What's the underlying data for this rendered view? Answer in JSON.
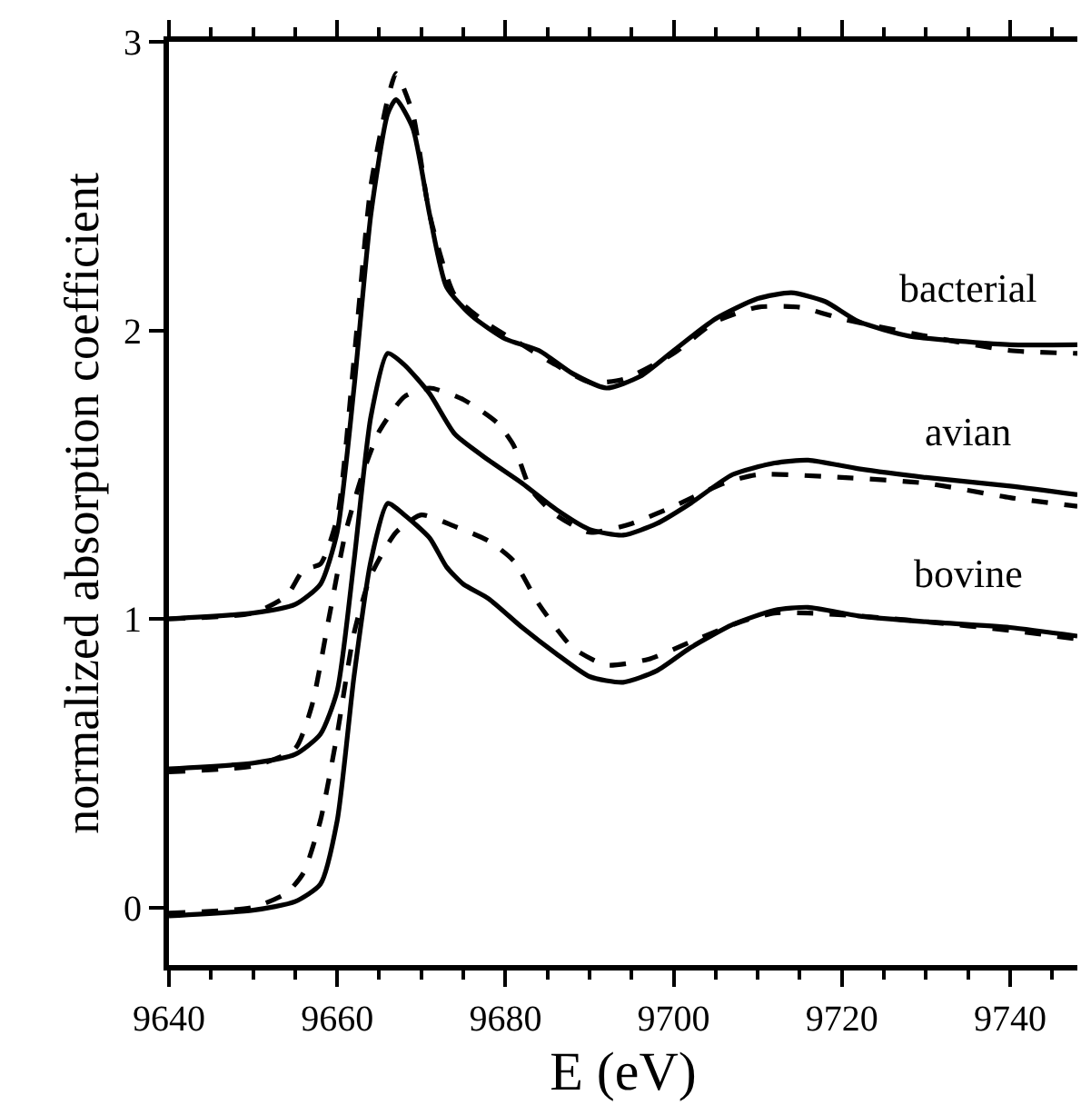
{
  "chart_data": {
    "type": "line",
    "xlabel": "E (eV)",
    "ylabel": "normalized absorption coefficient",
    "xlim": [
      9640,
      9748
    ],
    "xticks": [
      9640,
      9660,
      9680,
      9700,
      9720,
      9740
    ],
    "ylim": [
      -0.2,
      3
    ],
    "yticks": [
      0,
      1,
      2,
      3
    ],
    "marker": "none",
    "series": [
      {
        "color": "#000000",
        "line_style": "solid",
        "x": [
          9640,
          9650,
          9655,
          9658,
          9660,
          9662,
          9664,
          9666,
          9667,
          9669,
          9671,
          9673,
          9676,
          9680,
          9684,
          9688,
          9692,
          9696,
          9700,
          9705,
          9710,
          9714,
          9718,
          9722,
          9728,
          9735,
          9740,
          9748
        ],
        "values": [
          1.0,
          1.02,
          1.05,
          1.12,
          1.3,
          1.8,
          2.4,
          2.75,
          2.8,
          2.7,
          2.4,
          2.15,
          2.05,
          1.97,
          1.93,
          1.85,
          1.8,
          1.84,
          1.93,
          2.04,
          2.11,
          2.13,
          2.1,
          2.03,
          1.98,
          1.96,
          1.95,
          1.95
        ]
      },
      {
        "color": "#000000",
        "line_style": "dashed",
        "x": [
          9640,
          9650,
          9654,
          9656,
          9658,
          9660,
          9662,
          9664,
          9666,
          9667,
          9669,
          9671,
          9674,
          9678,
          9682,
          9686,
          9690,
          9694,
          9700,
          9705,
          9710,
          9715,
          9720,
          9730,
          9740,
          9748
        ],
        "values": [
          1.0,
          1.02,
          1.08,
          1.17,
          1.19,
          1.35,
          1.9,
          2.5,
          2.8,
          2.89,
          2.75,
          2.4,
          2.12,
          2.02,
          1.95,
          1.88,
          1.82,
          1.83,
          1.92,
          2.03,
          2.08,
          2.08,
          2.04,
          1.98,
          1.93,
          1.92
        ]
      },
      {
        "color": "#000000",
        "line_style": "solid",
        "x": [
          9640,
          9650,
          9655,
          9658,
          9660,
          9662,
          9664,
          9666,
          9668,
          9671,
          9674,
          9678,
          9682,
          9686,
          9690,
          9694,
          9698,
          9702,
          9707,
          9712,
          9716,
          9722,
          9730,
          9740,
          9748
        ],
        "values": [
          0.48,
          0.5,
          0.53,
          0.6,
          0.75,
          1.2,
          1.7,
          1.92,
          1.88,
          1.78,
          1.64,
          1.55,
          1.47,
          1.38,
          1.31,
          1.29,
          1.33,
          1.4,
          1.5,
          1.54,
          1.55,
          1.52,
          1.49,
          1.46,
          1.43
        ]
      },
      {
        "color": "#000000",
        "line_style": "dashed",
        "x": [
          9640,
          9650,
          9655,
          9657,
          9659,
          9661,
          9663,
          9665,
          9668,
          9671,
          9675,
          9679,
          9681,
          9683,
          9686,
          9690,
          9695,
          9700,
          9706,
          9710,
          9720,
          9730,
          9740,
          9748
        ],
        "values": [
          0.47,
          0.49,
          0.55,
          0.7,
          1.0,
          1.3,
          1.5,
          1.65,
          1.77,
          1.8,
          1.76,
          1.68,
          1.6,
          1.45,
          1.36,
          1.3,
          1.33,
          1.39,
          1.47,
          1.5,
          1.49,
          1.47,
          1.42,
          1.39
        ]
      },
      {
        "color": "#000000",
        "line_style": "solid",
        "x": [
          9640,
          9650,
          9655,
          9658,
          9660,
          9662,
          9664,
          9666,
          9668,
          9671,
          9673,
          9675,
          9678,
          9682,
          9686,
          9690,
          9694,
          9698,
          9702,
          9707,
          9712,
          9716,
          9722,
          9730,
          9740,
          9748
        ],
        "values": [
          -0.03,
          -0.01,
          0.02,
          0.08,
          0.3,
          0.8,
          1.2,
          1.4,
          1.36,
          1.28,
          1.18,
          1.12,
          1.07,
          0.97,
          0.88,
          0.8,
          0.78,
          0.82,
          0.9,
          0.98,
          1.03,
          1.04,
          1.01,
          0.99,
          0.97,
          0.94
        ]
      },
      {
        "color": "#000000",
        "line_style": "dashed",
        "x": [
          9640,
          9650,
          9654,
          9656,
          9658,
          9660,
          9662,
          9664,
          9667,
          9670,
          9674,
          9678,
          9681,
          9684,
          9688,
          9692,
          9697,
          9702,
          9708,
          9712,
          9716,
          9722,
          9730,
          9740,
          9748
        ],
        "values": [
          -0.02,
          0.0,
          0.05,
          0.12,
          0.3,
          0.6,
          0.95,
          1.15,
          1.3,
          1.36,
          1.32,
          1.27,
          1.2,
          1.05,
          0.9,
          0.84,
          0.86,
          0.92,
          0.99,
          1.02,
          1.02,
          1.01,
          0.99,
          0.96,
          0.93
        ]
      }
    ],
    "annotations": [
      "bacterial",
      "avian",
      "bovine"
    ]
  }
}
